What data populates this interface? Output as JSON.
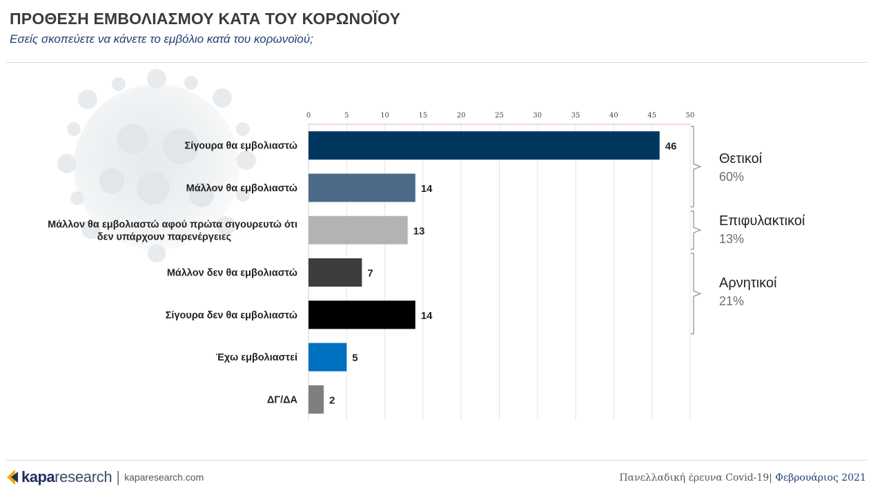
{
  "header": {
    "title": "ΠΡΟΘΕΣΗ ΕΜΒΟΛΙΑΣΜΟΥ ΚΑΤΑ ΤΟΥ ΚΟΡΩΝΟΪΟΥ",
    "subtitle": "Εσείς σκοπεύετε να κάνετε το εμβόλιο κατά του κορωνοϊού;"
  },
  "chart_data": {
    "type": "bar",
    "orientation": "horizontal",
    "categories": [
      "Σίγουρα θα εμβολιαστώ",
      "Μάλλον θα εμβολιαστώ",
      "Μάλλον θα εμβολιαστώ αφού πρώτα σιγουρευτώ ότι δεν υπάρχουν παρενέργειες",
      "Μάλλον δεν θα εμβολιαστώ",
      "Σίγουρα δεν θα εμβολιαστώ",
      "Έχω εμβολιαστεί",
      "ΔΓ/ΔΑ"
    ],
    "values": [
      46,
      14,
      13,
      7,
      14,
      5,
      2
    ],
    "colors": [
      "#00375f",
      "#4b6b88",
      "#b3b3b3",
      "#3d3d3d",
      "#000000",
      "#0070c0",
      "#7f7f7f"
    ],
    "xlim": [
      0,
      50
    ],
    "xticks": [
      0,
      5,
      10,
      15,
      20,
      25,
      30,
      35,
      40,
      45,
      50
    ],
    "axis_position": "top",
    "grid": true,
    "data_labels": true
  },
  "groups": [
    {
      "name": "Θετικοί",
      "pct": "60%"
    },
    {
      "name": "Επιφυλακτικοί",
      "pct": "13%"
    },
    {
      "name": "Αρνητικοί",
      "pct": "21%"
    }
  ],
  "footer": {
    "brand_kapa": "kapa",
    "brand_research": "research",
    "separator": "|",
    "site": "kaparesearch.com",
    "survey": "Πανελλαδική έρευνα Covid-19",
    "date_sep": "|",
    "date": "Φεβρουάριος 2021"
  },
  "colors": {
    "accent": "#1f3f73",
    "logo_icon": "#f2a900"
  }
}
